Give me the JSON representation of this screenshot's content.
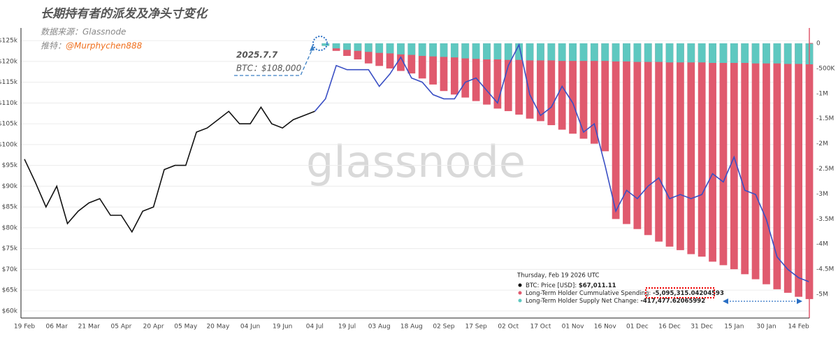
{
  "chart_data": {
    "type": "combo",
    "title": "长期持有者的派发及净头寸变化",
    "source": "数据来源：Glassnode",
    "twitter_label": "推特：",
    "twitter_handle": "@Murphychen888",
    "annotation_date": "2025.7.7",
    "annotation_price": "BTC：$108,000",
    "watermark": "glassnode",
    "tooltip_date": "Thursday, Feb 19 2026 UTC",
    "tooltip_values": [
      "$67,011.11",
      "-5,095,315.04204593",
      "-417,477.62065992"
    ],
    "categories": [
      "19 Feb",
      null,
      null,
      "06 Mar",
      null,
      null,
      "21 Mar",
      null,
      null,
      "05 Apr",
      null,
      null,
      "20 Apr",
      null,
      null,
      "05 May",
      null,
      null,
      "20 May",
      null,
      null,
      "04 Jun",
      null,
      null,
      "19 Jun",
      null,
      null,
      "04 Jul",
      null,
      null,
      "19 Jul",
      null,
      null,
      "03 Aug",
      null,
      null,
      "18 Aug",
      null,
      null,
      "02 Sep",
      null,
      null,
      "17 Sep",
      null,
      null,
      "02 Oct",
      null,
      null,
      "17 Oct",
      null,
      null,
      "01 Nov",
      null,
      null,
      "16 Nov",
      null,
      null,
      "01 Dec",
      null,
      null,
      "16 Dec",
      null,
      null,
      "31 Dec",
      null,
      null,
      "15 Jan",
      null,
      null,
      "30 Jan",
      null,
      null,
      "14 Feb",
      null
    ],
    "ylim": [
      58300,
      127200
    ],
    "yticks": [
      {
        "value": 60000,
        "label": "$60k"
      },
      {
        "value": 65000,
        "label": "$65k"
      },
      {
        "value": 70000,
        "label": "$70k"
      },
      {
        "value": 75000,
        "label": "$75k"
      },
      {
        "value": 80000,
        "label": "$80k"
      },
      {
        "value": 85000,
        "label": "$85k"
      },
      {
        "value": 90000,
        "label": "$90k"
      },
      {
        "value": 95000,
        "label": "$95k"
      },
      {
        "value": 100000,
        "label": "$100k"
      },
      {
        "value": 105000,
        "label": "$105k"
      },
      {
        "value": 110000,
        "label": "$110k"
      },
      {
        "value": 115000,
        "label": "$115k"
      },
      {
        "value": 120000,
        "label": "$120k"
      },
      {
        "value": 125000,
        "label": "$125k"
      }
    ],
    "y2lim": [
      -5473000,
      237000
    ],
    "y2ticks": [
      0,
      {
        "value": -500000,
        "label": "-500K"
      },
      {
        "value": -1000000,
        "label": "-1M"
      },
      {
        "value": -1500000,
        "label": "-1.5M"
      },
      {
        "value": -2000000,
        "label": "-2M"
      },
      {
        "value": -2500000,
        "label": "-2.5M"
      },
      {
        "value": -3000000,
        "label": "-3M"
      },
      {
        "value": -3500000,
        "label": "-3.5M"
      },
      {
        "value": -4000000,
        "label": "-4M"
      },
      {
        "value": -4500000,
        "label": "-4.5M"
      },
      {
        "value": -5000000,
        "label": "-5M"
      }
    ],
    "grid": true,
    "series": [
      {
        "name": "BTC: Price [USD]:",
        "type": "line",
        "color": "#3a4fc4",
        "values": [
          null,
          null,
          null,
          null,
          null,
          null,
          null,
          null,
          null,
          null,
          null,
          null,
          null,
          null,
          null,
          null,
          null,
          null,
          null,
          null,
          null,
          null,
          null,
          null,
          null,
          null,
          null,
          108000,
          111000,
          119000,
          118000,
          118000,
          118000,
          114000,
          117000,
          121000,
          116000,
          115000,
          112000,
          111000,
          111000,
          115000,
          116000,
          113000,
          110000,
          119000,
          124000,
          112000,
          107000,
          109000,
          114000,
          110000,
          103000,
          105000,
          95000,
          84000,
          89000,
          87000,
          90000,
          92000,
          87000,
          88000,
          87000,
          88000,
          93000,
          91000,
          97000,
          89000,
          88000,
          82000,
          73000,
          70000,
          68000,
          67011.11
        ]
      },
      {
        "type": "line",
        "color": "#111111",
        "values": [
          96500,
          91000,
          85000,
          90000,
          81000,
          84000,
          86000,
          87000,
          83000,
          83000,
          79000,
          84000,
          85000,
          94000,
          95000,
          95000,
          103000,
          104000,
          106000,
          108000,
          105000,
          105000,
          109000,
          105000,
          104000,
          106000,
          107000,
          108000,
          null,
          null,
          null,
          null,
          null,
          null,
          null,
          null,
          null,
          null,
          null,
          null,
          null,
          null,
          null,
          null,
          null,
          null,
          null,
          null,
          null,
          null,
          null,
          null,
          null,
          null,
          null,
          null,
          null,
          null,
          null,
          null,
          null,
          null,
          null,
          null,
          null,
          null,
          null,
          null,
          null,
          null,
          null,
          null,
          null,
          null
        ]
      },
      {
        "name": "Long-Term Holder Cummulative Spending:",
        "type": "bar",
        "axis": "y2",
        "color": "#e05a6e",
        "values": [
          null,
          null,
          null,
          null,
          null,
          null,
          null,
          null,
          null,
          null,
          null,
          null,
          null,
          null,
          null,
          null,
          null,
          null,
          null,
          null,
          null,
          null,
          null,
          null,
          null,
          null,
          null,
          null,
          -50000,
          -150000,
          -250000,
          -320000,
          -400000,
          -450000,
          -500000,
          -550000,
          -600000,
          -700000,
          -820000,
          -950000,
          -1020000,
          -1080000,
          -1150000,
          -1220000,
          -1300000,
          -1350000,
          -1420000,
          -1500000,
          -1550000,
          -1630000,
          -1720000,
          -1800000,
          -1900000,
          -2000000,
          -2150000,
          -3500000,
          -3600000,
          -3700000,
          -3820000,
          -3950000,
          -4050000,
          -4120000,
          -4200000,
          -4250000,
          -4350000,
          -4420000,
          -4500000,
          -4600000,
          -4700000,
          -4800000,
          -4900000,
          -4970000,
          -5050000,
          -5095315.04204593
        ]
      },
      {
        "name": "Long-Term Holder Supply Net Change:",
        "type": "bar",
        "axis": "y2",
        "color": "#5ec8c0",
        "values": [
          null,
          null,
          null,
          null,
          null,
          null,
          null,
          null,
          null,
          null,
          null,
          null,
          null,
          null,
          null,
          null,
          null,
          null,
          null,
          null,
          null,
          null,
          null,
          null,
          null,
          null,
          null,
          null,
          -50000,
          -100000,
          -130000,
          -150000,
          -170000,
          -190000,
          -200000,
          -220000,
          -230000,
          -250000,
          -260000,
          -270000,
          -280000,
          -300000,
          -310000,
          -320000,
          -320000,
          -330000,
          -330000,
          -340000,
          -340000,
          -340000,
          -350000,
          -350000,
          -350000,
          -350000,
          -350000,
          -360000,
          -360000,
          -370000,
          -370000,
          -370000,
          -380000,
          -380000,
          -380000,
          -380000,
          -390000,
          -390000,
          -390000,
          -390000,
          -400000,
          -400000,
          -400000,
          -410000,
          -410000,
          -417477.62065992
        ]
      }
    ]
  }
}
